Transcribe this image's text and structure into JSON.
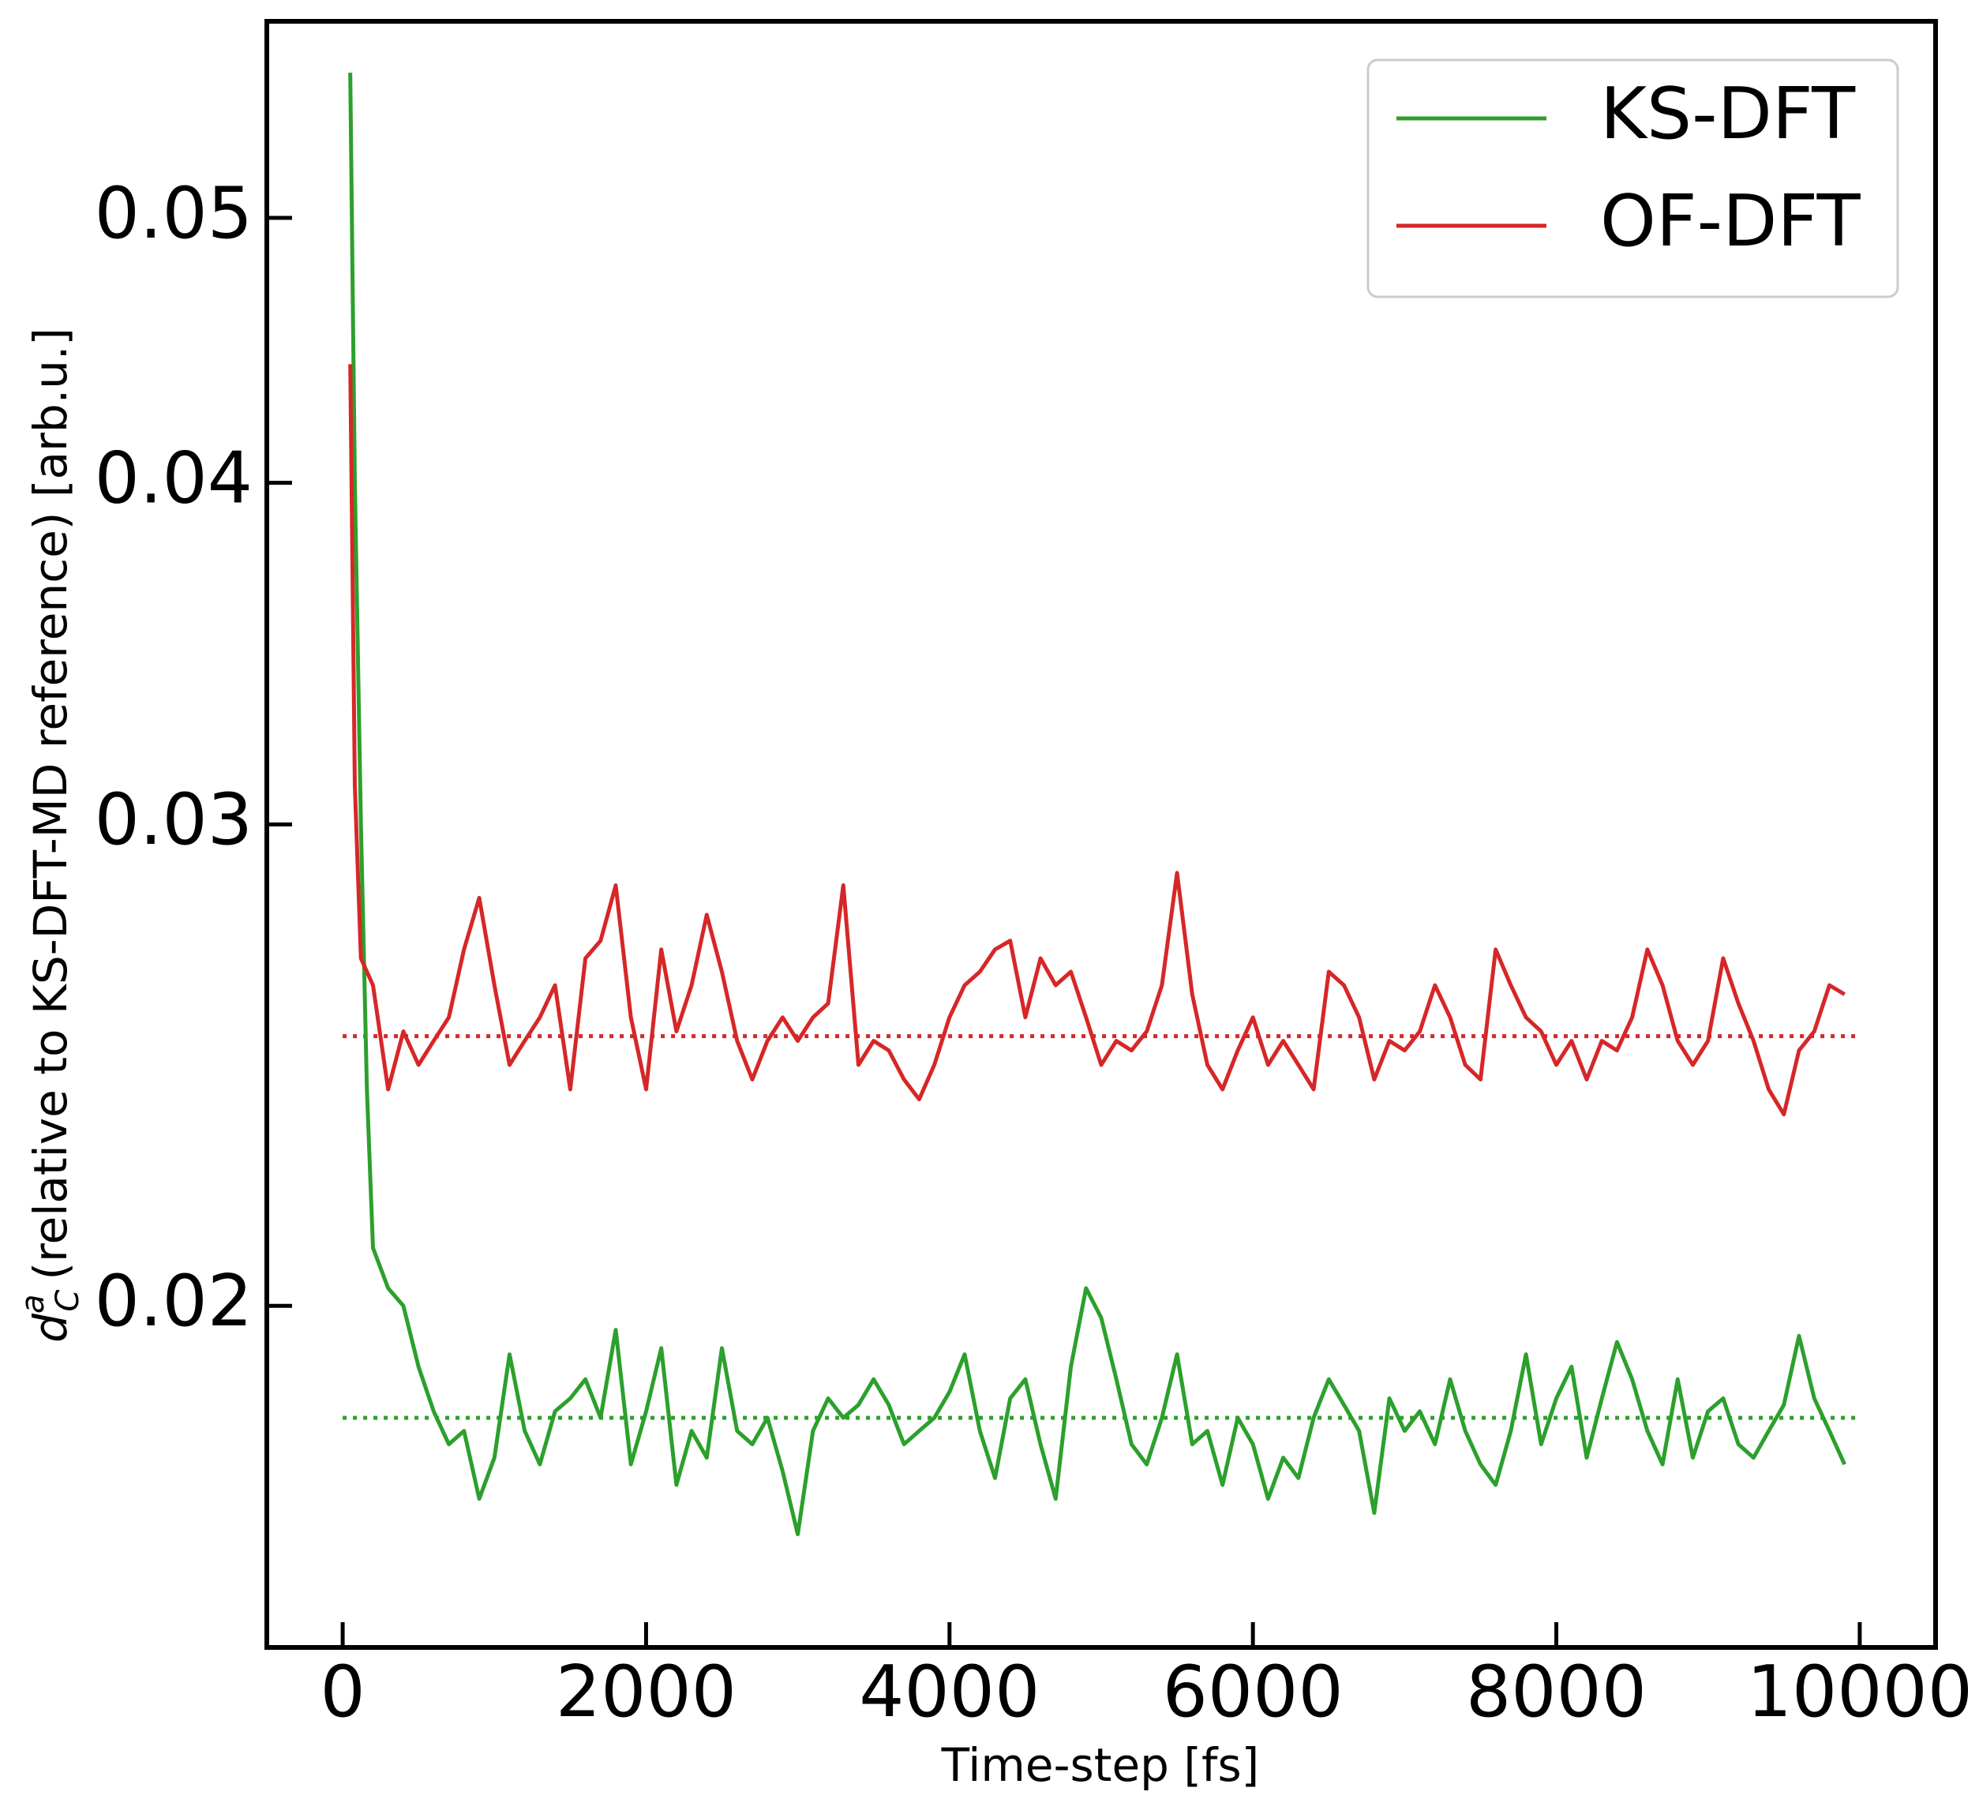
{
  "chart_data": {
    "type": "line",
    "xlabel": "Time-step [fs]",
    "ylabel": {
      "symbol": "d",
      "subscript": "C",
      "superscript": "a",
      "text": "(relative to KS-DFT-MD reference) [arb.u.]"
    },
    "x": [
      50,
      80,
      120,
      160,
      200,
      300,
      400,
      500,
      600,
      700,
      800,
      900,
      1000,
      1100,
      1200,
      1300,
      1400,
      1500,
      1600,
      1700,
      1800,
      1900,
      2000,
      2100,
      2200,
      2300,
      2400,
      2500,
      2600,
      2700,
      2800,
      2900,
      3000,
      3100,
      3200,
      3300,
      3400,
      3500,
      3600,
      3700,
      3800,
      3900,
      4000,
      4100,
      4200,
      4300,
      4400,
      4500,
      4600,
      4700,
      4800,
      4900,
      5000,
      5100,
      5200,
      5300,
      5400,
      5500,
      5600,
      5700,
      5800,
      5900,
      6000,
      6100,
      6200,
      6300,
      6400,
      6500,
      6600,
      6700,
      6800,
      6900,
      7000,
      7100,
      7200,
      7300,
      7400,
      7500,
      7600,
      7700,
      7800,
      7900,
      8000,
      8100,
      8200,
      8300,
      8400,
      8500,
      8600,
      8700,
      8800,
      8900,
      9000,
      9100,
      9200,
      9300,
      9400,
      9500,
      9600,
      9700,
      9800,
      9900
    ],
    "series": [
      {
        "name": "KS-DFT",
        "color": "#2ca02c",
        "values": [
          0.0565,
          0.04,
          0.03,
          0.024,
          0.021,
          0.0203,
          0.02,
          0.019,
          0.0183,
          0.0178,
          0.018,
          0.017,
          0.0176,
          0.0192,
          0.018,
          0.0175,
          0.0183,
          0.0185,
          0.0188,
          0.0182,
          0.0196,
          0.0175,
          0.0183,
          0.0193,
          0.0172,
          0.018,
          0.0176,
          0.0193,
          0.018,
          0.0178,
          0.0182,
          0.0174,
          0.0165,
          0.018,
          0.0185,
          0.0182,
          0.0184,
          0.0188,
          0.0184,
          0.0178,
          0.018,
          0.0182,
          0.0186,
          0.0192,
          0.018,
          0.0173,
          0.0185,
          0.0188,
          0.0178,
          0.017,
          0.019,
          0.0203,
          0.0198,
          0.0188,
          0.0178,
          0.0175,
          0.0182,
          0.0192,
          0.0178,
          0.018,
          0.0172,
          0.0182,
          0.0178,
          0.017,
          0.0176,
          0.0173,
          0.0182,
          0.0188,
          0.0184,
          0.018,
          0.0168,
          0.0185,
          0.018,
          0.0183,
          0.0178,
          0.0188,
          0.018,
          0.0175,
          0.0172,
          0.018,
          0.0192,
          0.0178,
          0.0185,
          0.019,
          0.0176,
          0.0185,
          0.0194,
          0.0188,
          0.018,
          0.0175,
          0.0188,
          0.0176,
          0.0183,
          0.0185,
          0.0178,
          0.0176,
          0.018,
          0.0184,
          0.0195,
          0.0185,
          0.018,
          0.0175
        ]
      },
      {
        "name": "OF-DFT",
        "color": "#d62728",
        "values": [
          0.0442,
          0.031,
          0.0268,
          0.0265,
          0.0262,
          0.024,
          0.0252,
          0.0245,
          0.025,
          0.0255,
          0.027,
          0.0282,
          0.0262,
          0.0245,
          0.025,
          0.0255,
          0.0262,
          0.024,
          0.0268,
          0.0272,
          0.0285,
          0.0255,
          0.024,
          0.027,
          0.0252,
          0.0262,
          0.0278,
          0.0265,
          0.025,
          0.0242,
          0.025,
          0.0255,
          0.025,
          0.0255,
          0.0258,
          0.0285,
          0.0245,
          0.025,
          0.0248,
          0.0242,
          0.0238,
          0.0245,
          0.0255,
          0.0262,
          0.0265,
          0.027,
          0.0272,
          0.0255,
          0.0268,
          0.0262,
          0.0265,
          0.0255,
          0.0245,
          0.025,
          0.0248,
          0.0252,
          0.0262,
          0.0288,
          0.026,
          0.0245,
          0.024,
          0.0248,
          0.0255,
          0.0245,
          0.025,
          0.0245,
          0.024,
          0.0265,
          0.0262,
          0.0255,
          0.0242,
          0.025,
          0.0248,
          0.0252,
          0.0262,
          0.0255,
          0.0245,
          0.0242,
          0.027,
          0.0262,
          0.0255,
          0.0252,
          0.0245,
          0.025,
          0.0242,
          0.025,
          0.0248,
          0.0255,
          0.027,
          0.0262,
          0.025,
          0.0245,
          0.025,
          0.0268,
          0.0258,
          0.025,
          0.024,
          0.0235,
          0.0248,
          0.0252,
          0.0262,
          0.026
        ]
      }
    ],
    "hlines": [
      {
        "y": 0.0182,
        "x": [
          0,
          10000
        ],
        "color": "#2ca02c",
        "style": "dotted"
      },
      {
        "y": 0.0251,
        "x": [
          0,
          10000
        ],
        "color": "#d62728",
        "style": "dotted"
      }
    ],
    "xlim": [
      -500,
      10500
    ],
    "xticks": [
      0,
      2000,
      4000,
      6000,
      8000,
      10000
    ],
    "ylim": [
      0.015,
      0.059
    ],
    "yticks": [
      0.02,
      0.03,
      0.04,
      0.05
    ],
    "yscale": "log",
    "grid": false,
    "legend": "upper right"
  }
}
